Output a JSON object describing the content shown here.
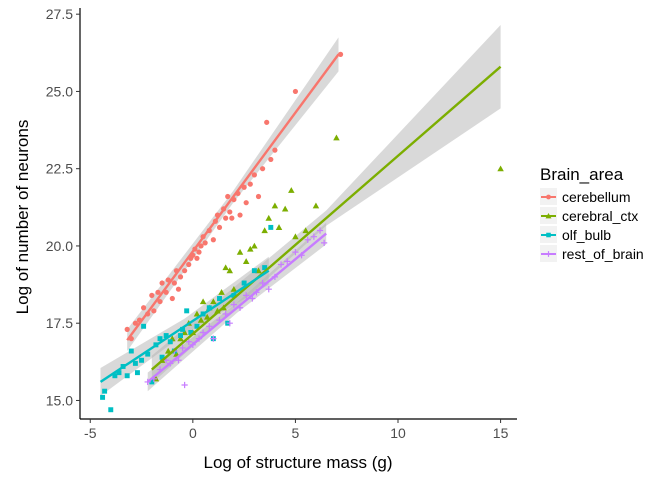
{
  "chart_data": {
    "type": "scatter",
    "xlabel": "Log of structure mass (g)",
    "ylabel": "Log of number of neurons",
    "xlim": [
      -5.5,
      15.8
    ],
    "ylim": [
      14.4,
      27.7
    ],
    "x_ticks": [
      -5,
      0,
      5,
      10,
      15
    ],
    "x_tick_labels": [
      "-5",
      "0",
      "5",
      "10",
      "15"
    ],
    "y_ticks": [
      15.0,
      17.5,
      20.0,
      22.5,
      25.0,
      27.5
    ],
    "y_tick_labels": [
      "15.0",
      "17.5",
      "20.0",
      "22.5",
      "25.0",
      "27.5"
    ],
    "grid": false,
    "legend": {
      "title": "Brain_area",
      "position": "right"
    },
    "series": [
      {
        "name": "cerebellum",
        "color": "#F8766D",
        "shape": "circle",
        "fit": {
          "x0": -3.2,
          "y0": 16.95,
          "x1": 7.1,
          "y1": 26.2,
          "band0": 0.35,
          "band1": 0.55
        },
        "points": [
          [
            -3.2,
            17.3
          ],
          [
            -3.0,
            17.0
          ],
          [
            -2.8,
            17.5
          ],
          [
            -2.6,
            17.6
          ],
          [
            -2.4,
            18.0
          ],
          [
            -2.2,
            17.8
          ],
          [
            -2.0,
            18.4
          ],
          [
            -1.9,
            17.9
          ],
          [
            -1.7,
            18.5
          ],
          [
            -1.6,
            18.2
          ],
          [
            -1.5,
            18.8
          ],
          [
            -1.3,
            18.5
          ],
          [
            -1.2,
            18.9
          ],
          [
            -1.0,
            18.3
          ],
          [
            -0.9,
            18.8
          ],
          [
            -0.8,
            19.2
          ],
          [
            -0.7,
            18.6
          ],
          [
            -0.6,
            19.0
          ],
          [
            -0.4,
            19.2
          ],
          [
            -0.2,
            19.4
          ],
          [
            -0.1,
            19.6
          ],
          [
            0.0,
            19.7
          ],
          [
            0.1,
            19.9
          ],
          [
            0.2,
            19.6
          ],
          [
            0.3,
            19.8
          ],
          [
            0.4,
            20.0
          ],
          [
            0.5,
            20.3
          ],
          [
            0.6,
            20.1
          ],
          [
            0.8,
            20.5
          ],
          [
            1.0,
            20.2
          ],
          [
            1.1,
            20.8
          ],
          [
            1.2,
            21.0
          ],
          [
            1.3,
            20.6
          ],
          [
            1.5,
            21.2
          ],
          [
            1.6,
            20.9
          ],
          [
            1.7,
            21.6
          ],
          [
            1.8,
            21.1
          ],
          [
            1.9,
            20.9
          ],
          [
            2.0,
            21.5
          ],
          [
            2.2,
            21.7
          ],
          [
            2.3,
            21.0
          ],
          [
            2.5,
            21.9
          ],
          [
            2.6,
            21.4
          ],
          [
            2.8,
            22.0
          ],
          [
            3.0,
            22.3
          ],
          [
            3.2,
            21.6
          ],
          [
            3.4,
            22.5
          ],
          [
            3.6,
            24.0
          ],
          [
            3.8,
            22.8
          ],
          [
            4.0,
            23.1
          ],
          [
            5.0,
            25.0
          ],
          [
            7.2,
            26.2
          ]
        ]
      },
      {
        "name": "cerebral_ctx",
        "color": "#7CAE00",
        "shape": "triangle",
        "fit": {
          "x0": -2.0,
          "y0": 16.0,
          "x1": 15.0,
          "y1": 25.8,
          "band0": 0.45,
          "band1": 1.35
        },
        "points": [
          [
            -1.8,
            15.7
          ],
          [
            -1.5,
            16.3
          ],
          [
            -1.2,
            16.6
          ],
          [
            -1.0,
            17.0
          ],
          [
            -0.8,
            16.5
          ],
          [
            -0.6,
            17.0
          ],
          [
            -0.4,
            17.2
          ],
          [
            -0.2,
            17.5
          ],
          [
            0.0,
            17.2
          ],
          [
            0.2,
            17.8
          ],
          [
            0.4,
            17.6
          ],
          [
            0.5,
            18.2
          ],
          [
            0.7,
            17.7
          ],
          [
            0.8,
            18.0
          ],
          [
            1.0,
            18.2
          ],
          [
            1.2,
            17.9
          ],
          [
            1.4,
            18.5
          ],
          [
            1.5,
            18.0
          ],
          [
            1.6,
            19.3
          ],
          [
            1.8,
            19.2
          ],
          [
            2.0,
            18.6
          ],
          [
            2.3,
            19.8
          ],
          [
            2.6,
            19.5
          ],
          [
            2.8,
            19.9
          ],
          [
            3.0,
            20.0
          ],
          [
            3.2,
            19.2
          ],
          [
            3.5,
            20.5
          ],
          [
            3.7,
            20.9
          ],
          [
            4.0,
            21.3
          ],
          [
            4.2,
            20.6
          ],
          [
            4.5,
            21.2
          ],
          [
            4.8,
            21.8
          ],
          [
            5.0,
            20.3
          ],
          [
            5.5,
            20.5
          ],
          [
            6.0,
            21.3
          ],
          [
            7.0,
            23.5
          ],
          [
            15.0,
            22.5
          ]
        ]
      },
      {
        "name": "olf_bulb",
        "color": "#00BFC4",
        "shape": "square",
        "fit": {
          "x0": -4.5,
          "y0": 15.6,
          "x1": 3.7,
          "y1": 19.2,
          "band0": 0.45,
          "band1": 0.45
        },
        "points": [
          [
            -4.4,
            15.1
          ],
          [
            -4.3,
            15.3
          ],
          [
            -4.0,
            14.7
          ],
          [
            -3.8,
            15.8
          ],
          [
            -3.6,
            15.9
          ],
          [
            -3.4,
            16.1
          ],
          [
            -3.2,
            15.8
          ],
          [
            -3.0,
            16.6
          ],
          [
            -2.8,
            16.2
          ],
          [
            -2.7,
            15.9
          ],
          [
            -2.5,
            16.3
          ],
          [
            -2.4,
            17.4
          ],
          [
            -2.2,
            16.5
          ],
          [
            -2.0,
            15.6
          ],
          [
            -1.8,
            16.8
          ],
          [
            -1.6,
            17.0
          ],
          [
            -1.5,
            16.4
          ],
          [
            -1.3,
            17.1
          ],
          [
            -1.1,
            16.9
          ],
          [
            -0.9,
            16.6
          ],
          [
            -0.6,
            17.1
          ],
          [
            -0.5,
            17.3
          ],
          [
            -0.3,
            17.9
          ],
          [
            -0.1,
            17.2
          ],
          [
            0.2,
            17.4
          ],
          [
            0.5,
            17.8
          ],
          [
            0.8,
            18.0
          ],
          [
            1.0,
            17.0
          ],
          [
            1.3,
            18.3
          ],
          [
            1.7,
            17.5
          ],
          [
            2.0,
            18.4
          ],
          [
            2.5,
            18.8
          ],
          [
            3.0,
            19.2
          ],
          [
            3.5,
            19.3
          ],
          [
            3.8,
            20.6
          ]
        ]
      },
      {
        "name": "rest_of_brain",
        "color": "#C77CFF",
        "shape": "plus",
        "fit": {
          "x0": -2.2,
          "y0": 15.6,
          "x1": 6.5,
          "y1": 20.4,
          "band0": 0.3,
          "band1": 0.35
        },
        "points": [
          [
            -2.2,
            15.6
          ],
          [
            -1.9,
            15.7
          ],
          [
            -1.6,
            16.0
          ],
          [
            -1.3,
            16.3
          ],
          [
            -1.1,
            16.2
          ],
          [
            -0.9,
            16.6
          ],
          [
            -0.7,
            16.3
          ],
          [
            -0.5,
            16.7
          ],
          [
            -0.4,
            15.5
          ],
          [
            -0.2,
            16.9
          ],
          [
            0.0,
            16.8
          ],
          [
            0.3,
            17.0
          ],
          [
            0.5,
            17.2
          ],
          [
            0.8,
            17.4
          ],
          [
            1.0,
            17.0
          ],
          [
            1.3,
            17.6
          ],
          [
            1.6,
            17.8
          ],
          [
            1.8,
            17.5
          ],
          [
            2.0,
            18.1
          ],
          [
            2.3,
            18.0
          ],
          [
            2.6,
            18.4
          ],
          [
            2.9,
            18.3
          ],
          [
            3.1,
            18.5
          ],
          [
            3.4,
            18.8
          ],
          [
            3.7,
            18.6
          ],
          [
            4.0,
            19.0
          ],
          [
            4.3,
            19.4
          ],
          [
            4.6,
            19.5
          ],
          [
            5.0,
            19.8
          ],
          [
            5.3,
            19.7
          ],
          [
            5.6,
            20.2
          ],
          [
            5.9,
            20.3
          ],
          [
            6.2,
            20.5
          ],
          [
            6.4,
            20.1
          ]
        ]
      }
    ]
  }
}
